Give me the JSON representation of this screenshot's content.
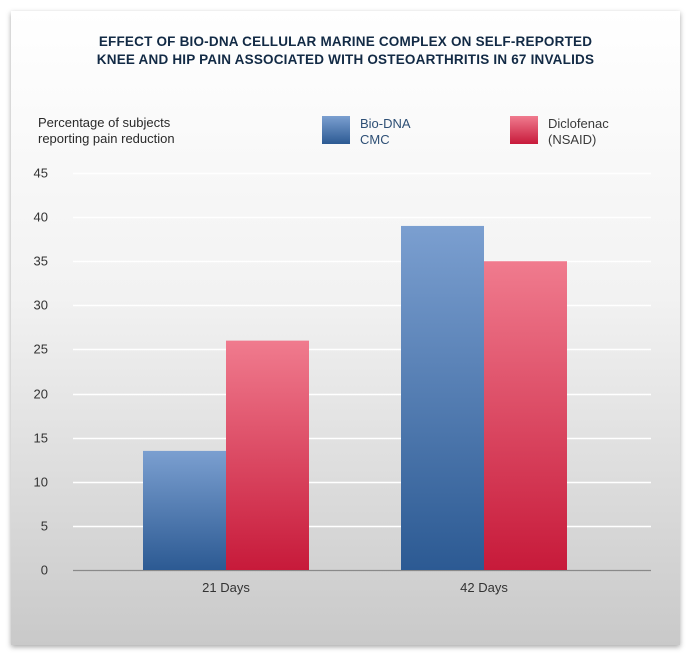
{
  "chart_data": {
    "type": "bar",
    "title_lines": [
      "EFFECT OF BIO-DNA CELLULAR MARINE COMPLEX ON SELF-REPORTED",
      "KNEE AND HIP PAIN ASSOCIATED WITH OSTEOARTHRITIS IN 67 INVALIDS"
    ],
    "ylabel_lines": [
      "Percentage of subjects",
      "reporting pain reduction"
    ],
    "xlabel": "",
    "categories": [
      "21 Days",
      "42 Days"
    ],
    "series": [
      {
        "name_lines": [
          "Bio-DNA",
          "CMC"
        ],
        "values": [
          13.5,
          39
        ],
        "color_top": "#7b9fd0",
        "color_bottom": "#2c5a93"
      },
      {
        "name_lines": [
          "Diclofenac",
          "(NSAID)"
        ],
        "values": [
          26,
          35
        ],
        "color_top": "#f07b8e",
        "color_bottom": "#c71a3a"
      }
    ],
    "ylim": [
      0,
      45
    ],
    "yticks": [
      0,
      5,
      10,
      15,
      20,
      25,
      30,
      35,
      40,
      45
    ],
    "grid": true,
    "legend_position": "top"
  }
}
